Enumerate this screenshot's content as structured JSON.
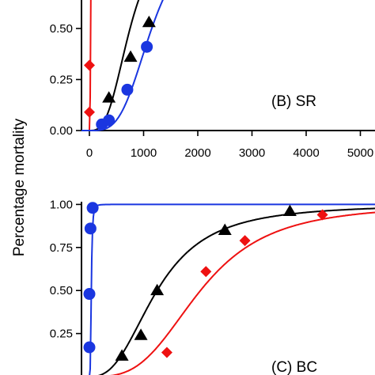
{
  "shared": {
    "ylabel": "Percentage mortality",
    "colors": {
      "black": "#000000",
      "red": "#ee1111",
      "blue": "#1a36e0"
    }
  },
  "chart_data": [
    {
      "type": "scatter",
      "panel_label": "(B) SR",
      "xlim": [
        -100,
        5200
      ],
      "ylim": [
        0,
        1.0
      ],
      "x_ticks": [
        0,
        1000,
        2000,
        3000,
        4000,
        5000
      ],
      "x_tick_labels": [
        "0",
        "1000",
        "2000",
        "3000",
        "4000",
        "5000"
      ],
      "y_ticks": [
        0.0,
        0.25,
        0.5
      ],
      "y_tick_labels": [
        "0.00",
        "0.25",
        "0.50"
      ],
      "series": [
        {
          "color": "black",
          "marker": "triangle",
          "points": [
            [
              360,
              0.16
            ],
            [
              760,
              0.36
            ],
            [
              1100,
              0.53
            ]
          ],
          "curve": {
            "model": "logistic_log",
            "ec50": 750,
            "slope": 3.0
          }
        },
        {
          "color": "red",
          "marker": "diamond",
          "points": [
            [
              0,
              0.09
            ],
            [
              0,
              0.32
            ]
          ],
          "curve": {
            "model": "logistic_log",
            "ec50": 22,
            "slope": 4.0
          }
        },
        {
          "color": "blue",
          "marker": "circle",
          "points": [
            [
              230,
              0.03
            ],
            [
              360,
              0.05
            ],
            [
              700,
              0.2
            ],
            [
              1060,
              0.41
            ]
          ],
          "curve": {
            "model": "logistic_log",
            "ec50": 1150,
            "slope": 3.5
          }
        }
      ]
    },
    {
      "type": "scatter",
      "panel_label": "(C) BC",
      "xlim": [
        -100,
        5200
      ],
      "ylim": [
        0,
        1.0
      ],
      "x_ticks": [],
      "x_tick_labels": [],
      "y_ticks": [
        0.25,
        0.5,
        0.75,
        1.0
      ],
      "y_tick_labels": [
        "0.25",
        "0.50",
        "0.75",
        "1.00"
      ],
      "series": [
        {
          "color": "black",
          "marker": "triangle",
          "points": [
            [
              600,
              0.12
            ],
            [
              950,
              0.24
            ],
            [
              1250,
              0.5
            ],
            [
              2500,
              0.85
            ],
            [
              3700,
              0.96
            ]
          ],
          "curve": {
            "model": "logistic_log",
            "ec50": 1250,
            "slope": 2.6
          }
        },
        {
          "color": "red",
          "marker": "diamond",
          "points": [
            [
              1430,
              0.14
            ],
            [
              2150,
              0.61
            ],
            [
              2870,
              0.79
            ],
            [
              4300,
              0.94
            ]
          ],
          "curve": {
            "model": "logistic_log",
            "ec50": 2050,
            "slope": 3.2
          }
        },
        {
          "color": "blue",
          "marker": "circle",
          "points": [
            [
              0,
              0.17
            ],
            [
              0,
              0.48
            ],
            [
              20,
              0.86
            ],
            [
              60,
              0.98
            ]
          ],
          "curve": {
            "model": "logistic_log",
            "ec50": 35,
            "slope": 3.5
          }
        }
      ]
    }
  ]
}
